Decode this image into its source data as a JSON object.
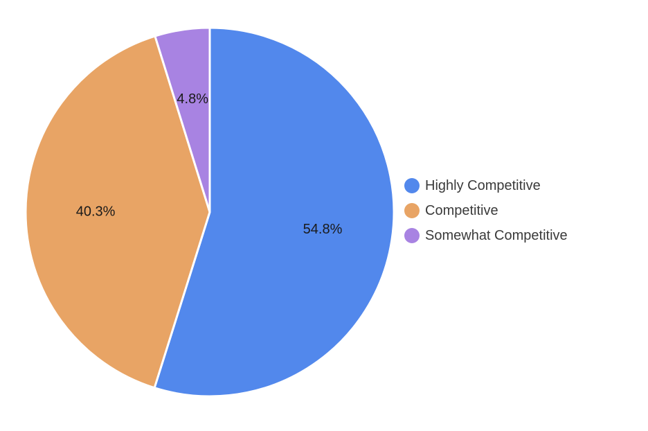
{
  "chart_data": {
    "type": "pie",
    "title": "",
    "slices": [
      {
        "name": "Highly Competitive",
        "value": 54.8,
        "label": "54.8%",
        "color": "#5288ec"
      },
      {
        "name": "Competitive",
        "value": 40.3,
        "label": "40.3%",
        "color": "#e8a465"
      },
      {
        "name": "Somewhat Competitive",
        "value": 4.8,
        "label": "4.8%",
        "color": "#a883e2"
      }
    ],
    "legend_position": "right",
    "start_angle": "top, clockwise"
  }
}
